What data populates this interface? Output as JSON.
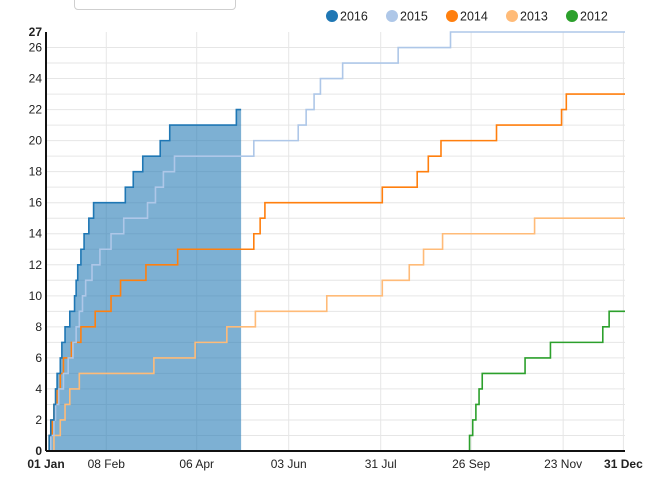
{
  "chart_data": {
    "type": "line",
    "title": "",
    "xlabel": "",
    "ylabel": "",
    "ylim": [
      0,
      27
    ],
    "y_ticks": [
      0,
      2,
      4,
      6,
      8,
      10,
      12,
      14,
      16,
      18,
      20,
      22,
      24,
      26,
      27
    ],
    "x_day_range": [
      1,
      366
    ],
    "x_ticks": [
      {
        "label": "01 Jan",
        "day": 1,
        "bold": true
      },
      {
        "label": "08 Feb",
        "day": 39,
        "bold": false
      },
      {
        "label": "06 Apr",
        "day": 96,
        "bold": false
      },
      {
        "label": "03 Jun",
        "day": 154,
        "bold": false
      },
      {
        "label": "31 Jul",
        "day": 212,
        "bold": false
      },
      {
        "label": "26 Sep",
        "day": 269,
        "bold": false
      },
      {
        "label": "23 Nov",
        "day": 327,
        "bold": false
      },
      {
        "label": "31 Dec",
        "day": 365,
        "bold": true
      }
    ],
    "grid": true,
    "legend_position": "top-right",
    "series": [
      {
        "name": "2016",
        "color": "#1f77b4",
        "fill": true,
        "points": [
          [
            1,
            0
          ],
          [
            3,
            1
          ],
          [
            4,
            2
          ],
          [
            6,
            3
          ],
          [
            7,
            4
          ],
          [
            8,
            5
          ],
          [
            10,
            6
          ],
          [
            11,
            7
          ],
          [
            13,
            8
          ],
          [
            16,
            9
          ],
          [
            19,
            10
          ],
          [
            20,
            11
          ],
          [
            21,
            12
          ],
          [
            23,
            13
          ],
          [
            25,
            14
          ],
          [
            28,
            15
          ],
          [
            31,
            16
          ],
          [
            51,
            17
          ],
          [
            56,
            18
          ],
          [
            62,
            19
          ],
          [
            73,
            20
          ],
          [
            79,
            21
          ],
          [
            121,
            22
          ],
          [
            124,
            22
          ]
        ]
      },
      {
        "name": "2015",
        "color": "#aec7e8",
        "fill": false,
        "points": [
          [
            1,
            0
          ],
          [
            4,
            1
          ],
          [
            6,
            2
          ],
          [
            7,
            3
          ],
          [
            9,
            4
          ],
          [
            12,
            5
          ],
          [
            15,
            6
          ],
          [
            18,
            7
          ],
          [
            20,
            8
          ],
          [
            22,
            9
          ],
          [
            24,
            10
          ],
          [
            26,
            11
          ],
          [
            30,
            12
          ],
          [
            35,
            13
          ],
          [
            42,
            14
          ],
          [
            50,
            15
          ],
          [
            65,
            16
          ],
          [
            70,
            17
          ],
          [
            75,
            18
          ],
          [
            82,
            19
          ],
          [
            132,
            20
          ],
          [
            160,
            21
          ],
          [
            165,
            22
          ],
          [
            170,
            23
          ],
          [
            174,
            24
          ],
          [
            188,
            25
          ],
          [
            223,
            26
          ],
          [
            256,
            27
          ],
          [
            366,
            27
          ]
        ]
      },
      {
        "name": "2014",
        "color": "#ff7f0e",
        "fill": false,
        "points": [
          [
            1,
            0
          ],
          [
            3,
            1
          ],
          [
            5,
            2
          ],
          [
            6,
            3
          ],
          [
            8,
            4
          ],
          [
            10,
            5
          ],
          [
            12,
            6
          ],
          [
            17,
            7
          ],
          [
            23,
            8
          ],
          [
            32,
            9
          ],
          [
            42,
            10
          ],
          [
            48,
            11
          ],
          [
            64,
            12
          ],
          [
            84,
            13
          ],
          [
            132,
            14
          ],
          [
            136,
            15
          ],
          [
            139,
            16
          ],
          [
            213,
            17
          ],
          [
            235,
            18
          ],
          [
            242,
            19
          ],
          [
            250,
            20
          ],
          [
            285,
            21
          ],
          [
            326,
            22
          ],
          [
            329,
            23
          ],
          [
            366,
            23
          ]
        ]
      },
      {
        "name": "2013",
        "color": "#ffbb78",
        "fill": false,
        "points": [
          [
            1,
            0
          ],
          [
            6,
            1
          ],
          [
            10,
            2
          ],
          [
            13,
            3
          ],
          [
            16,
            4
          ],
          [
            22,
            5
          ],
          [
            69,
            6
          ],
          [
            95,
            7
          ],
          [
            115,
            8
          ],
          [
            133,
            9
          ],
          [
            178,
            10
          ],
          [
            213,
            11
          ],
          [
            230,
            12
          ],
          [
            239,
            13
          ],
          [
            251,
            14
          ],
          [
            309,
            15
          ],
          [
            366,
            15
          ]
        ]
      },
      {
        "name": "2012",
        "color": "#2ca02c",
        "fill": false,
        "points": [
          [
            1,
            0
          ],
          [
            268,
            0
          ],
          [
            268,
            1
          ],
          [
            270,
            2
          ],
          [
            272,
            3
          ],
          [
            274,
            4
          ],
          [
            276,
            5
          ],
          [
            303,
            6
          ],
          [
            319,
            7
          ],
          [
            352,
            8
          ],
          [
            356,
            9
          ],
          [
            366,
            9
          ]
        ]
      }
    ]
  }
}
